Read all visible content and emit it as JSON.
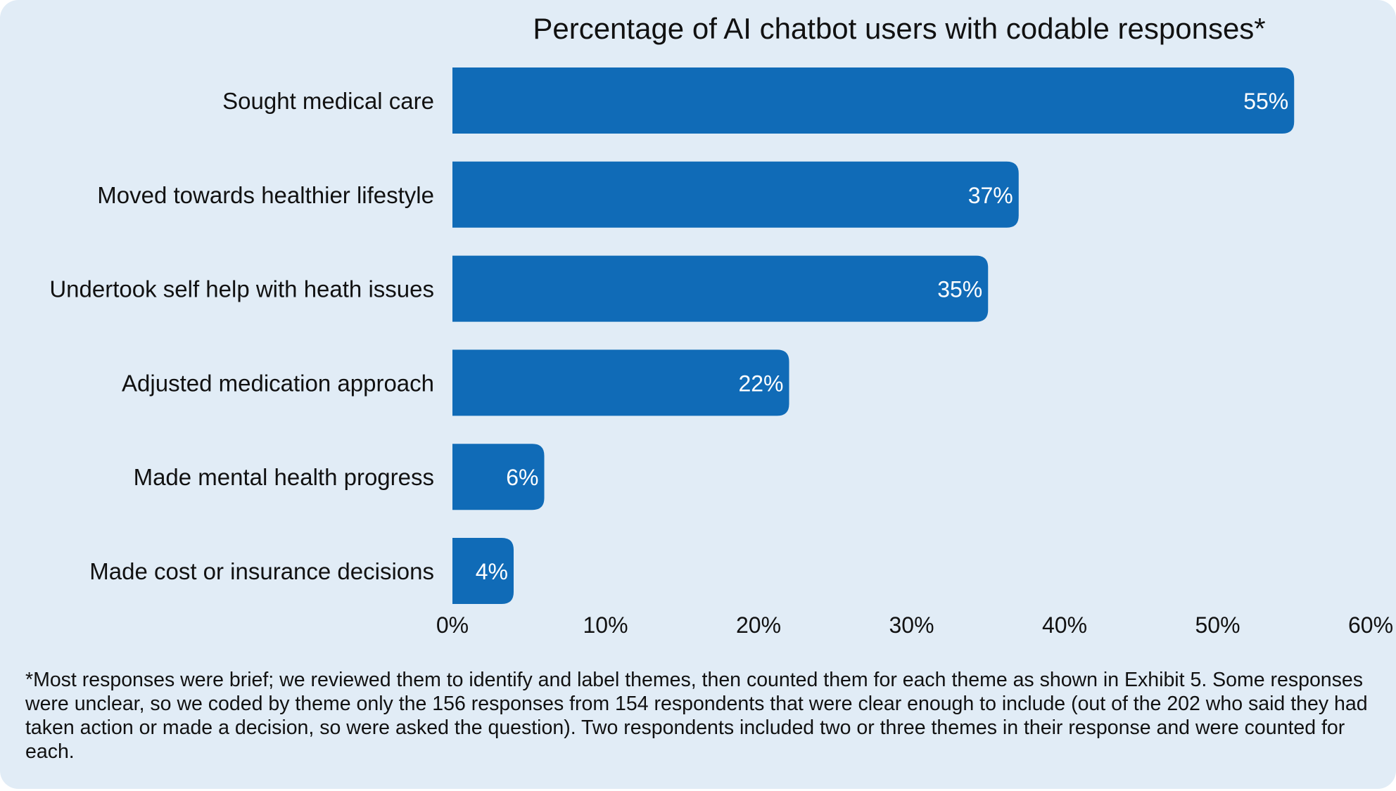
{
  "colors": {
    "background": "#e1ecf6",
    "bar": "#106bb7",
    "text": "#111111",
    "value_text": "#ffffff"
  },
  "chart_data": {
    "type": "bar",
    "orientation": "horizontal",
    "title": "Percentage of AI chatbot users with codable responses*",
    "categories": [
      "Sought medical care",
      "Moved towards healthier lifestyle",
      "Undertook self help with heath issues",
      "Adjusted medication approach",
      "Made mental health progress",
      "Made cost or insurance decisions"
    ],
    "values": [
      55,
      37,
      35,
      22,
      6,
      4
    ],
    "value_labels": [
      "55%",
      "37%",
      "35%",
      "22%",
      "6%",
      "4%"
    ],
    "xlim": [
      0,
      60
    ],
    "x_ticks": [
      0,
      10,
      20,
      30,
      40,
      50,
      60
    ],
    "x_tick_labels": [
      "0%",
      "10%",
      "20%",
      "30%",
      "40%",
      "50%",
      "60%"
    ],
    "grid": false,
    "legend": "none"
  },
  "footnote": "*Most responses were brief; we reviewed them to identify and label themes, then counted them for each theme as shown in Exhibit 5. Some responses were unclear, so we coded by theme only the 156 responses from 154 respondents that were clear enough to include (out of the 202 who said they had taken action or made a decision, so were asked the question). Two respondents included two or three themes in their response and were counted for each."
}
